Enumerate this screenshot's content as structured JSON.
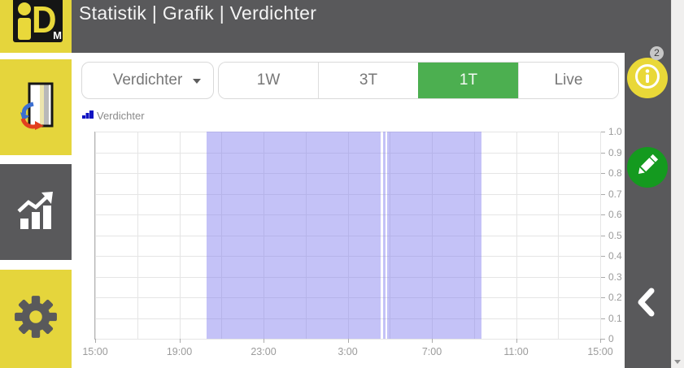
{
  "header": {
    "title": "Statistik | Grafik | Verdichter",
    "brand": "iDM",
    "logo": {
      "d": "D",
      "m": "M"
    }
  },
  "sidebar": {
    "items": [
      {
        "id": "heat-pump",
        "icon": "heat-pump-icon"
      },
      {
        "id": "statistics",
        "icon": "statistics-chart-icon"
      },
      {
        "id": "settings",
        "icon": "settings-gear-icon"
      }
    ]
  },
  "controls": {
    "dropdown": {
      "value": "Verdichter"
    },
    "range_buttons": [
      {
        "label": "1W",
        "selected": false
      },
      {
        "label": "3T",
        "selected": false
      },
      {
        "label": "1T",
        "selected": true
      },
      {
        "label": "Live",
        "selected": false
      }
    ],
    "selected_color": "#4caf50"
  },
  "legend": {
    "label": "Verdichter"
  },
  "chart_data": {
    "type": "area",
    "series_name": "Verdichter",
    "x_start": "15:00",
    "x_span_hours": 24,
    "x_tick_labels": [
      "15:00",
      "19:00",
      "23:00",
      "3:00",
      "7:00",
      "11:00",
      "15:00"
    ],
    "x_gridline_interval_hours": 2,
    "y_ticks": [
      "1.0",
      "0.9",
      "0.8",
      "0.7",
      "0.6",
      "0.5",
      "0.4",
      "0.3",
      "0.2",
      "0.1",
      "0"
    ],
    "ylim": [
      0,
      1
    ],
    "grid": true,
    "legend_position": "top-left",
    "fill_color": "rgba(124,119,238,0.45)",
    "legend_color": "#1013c2",
    "value_when_on": 1,
    "value_when_off": 0,
    "on_segments": [
      {
        "from": "20:18",
        "to": "04:35"
      },
      {
        "from": "04:41",
        "to": "04:48"
      },
      {
        "from": "04:53",
        "to": "09:21"
      }
    ]
  },
  "right_panel": {
    "info_badge_count": "2"
  }
}
